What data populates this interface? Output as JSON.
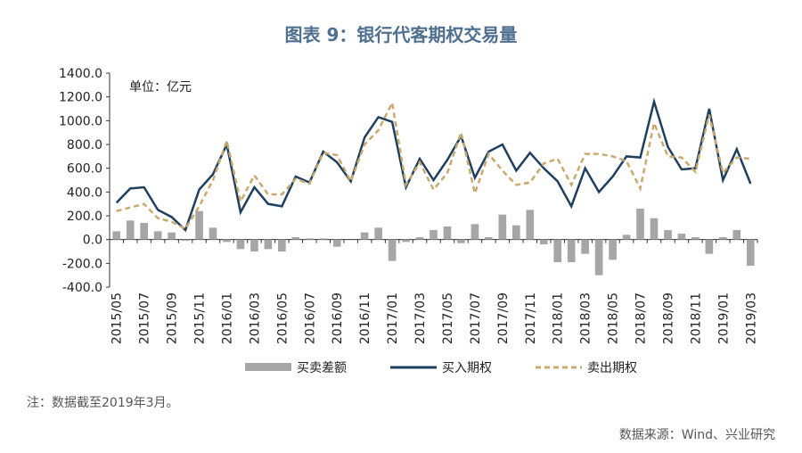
{
  "chart_data": {
    "type": "combo",
    "title": "图表 9：银行代客期权交易量",
    "unit_label": "单位：亿元",
    "note": "注：数据截至2019年3月。",
    "source": "数据来源：Wind、兴业研究",
    "categories": [
      "2015/05",
      null,
      "2015/07",
      null,
      "2015/09",
      null,
      "2015/11",
      null,
      "2016/01",
      null,
      "2016/03",
      null,
      "2016/05",
      null,
      "2016/07",
      null,
      "2016/09",
      null,
      "2016/11",
      null,
      "2017/01",
      null,
      "2017/03",
      null,
      "2017/05",
      null,
      "2017/07",
      null,
      "2017/09",
      null,
      "2017/11",
      null,
      "2018/01",
      null,
      "2018/03",
      null,
      "2018/05",
      null,
      "2018/07",
      null,
      "2018/09",
      null,
      "2018/11",
      null,
      "2019/01",
      null,
      "2019/03"
    ],
    "ylim": [
      -400,
      1400
    ],
    "yticks": [
      {
        "value": -400,
        "label": "-400.0"
      },
      {
        "value": -200,
        "label": "-200.0"
      },
      {
        "value": 0,
        "label": "0.0"
      },
      {
        "value": 200,
        "label": "200.0"
      },
      {
        "value": 400,
        "label": "400.0"
      },
      {
        "value": 600,
        "label": "600.0"
      },
      {
        "value": 800,
        "label": "800.0"
      },
      {
        "value": 1000,
        "label": "1000.0"
      },
      {
        "value": 1200,
        "label": "1200.0"
      },
      {
        "value": 1400,
        "label": "1400.0"
      }
    ],
    "series": [
      {
        "name": "买卖差额",
        "type": "bar",
        "color": "#a6a6a6",
        "values": [
          70,
          160,
          140,
          70,
          60,
          -10,
          240,
          100,
          -20,
          -80,
          -100,
          -80,
          -100,
          20,
          10,
          10,
          -60,
          0,
          60,
          100,
          -180,
          -20,
          20,
          80,
          110,
          -30,
          130,
          20,
          210,
          120,
          250,
          -40,
          -190,
          -190,
          -120,
          -300,
          -170,
          40,
          260,
          180,
          80,
          50,
          20,
          -120,
          20,
          80,
          -220
        ]
      },
      {
        "name": "买入期权",
        "type": "line",
        "color": "#1f3f5f",
        "dash": false,
        "values": [
          310,
          430,
          440,
          250,
          190,
          80,
          420,
          550,
          800,
          230,
          440,
          300,
          280,
          530,
          480,
          740,
          650,
          490,
          860,
          1030,
          990,
          440,
          680,
          500,
          670,
          870,
          520,
          740,
          800,
          580,
          730,
          600,
          490,
          280,
          600,
          400,
          530,
          700,
          690,
          1160,
          780,
          590,
          600,
          1100,
          500,
          760,
          470
        ]
      },
      {
        "name": "卖出期权",
        "type": "line",
        "color": "#c8a96e",
        "dash": true,
        "values": [
          240,
          270,
          300,
          180,
          150,
          90,
          280,
          500,
          830,
          320,
          540,
          380,
          380,
          510,
          470,
          730,
          710,
          490,
          800,
          920,
          1150,
          460,
          650,
          420,
          560,
          900,
          390,
          720,
          580,
          460,
          480,
          640,
          680,
          460,
          720,
          720,
          700,
          660,
          430,
          980,
          700,
          690,
          570,
          1050,
          560,
          690,
          680
        ]
      }
    ]
  }
}
